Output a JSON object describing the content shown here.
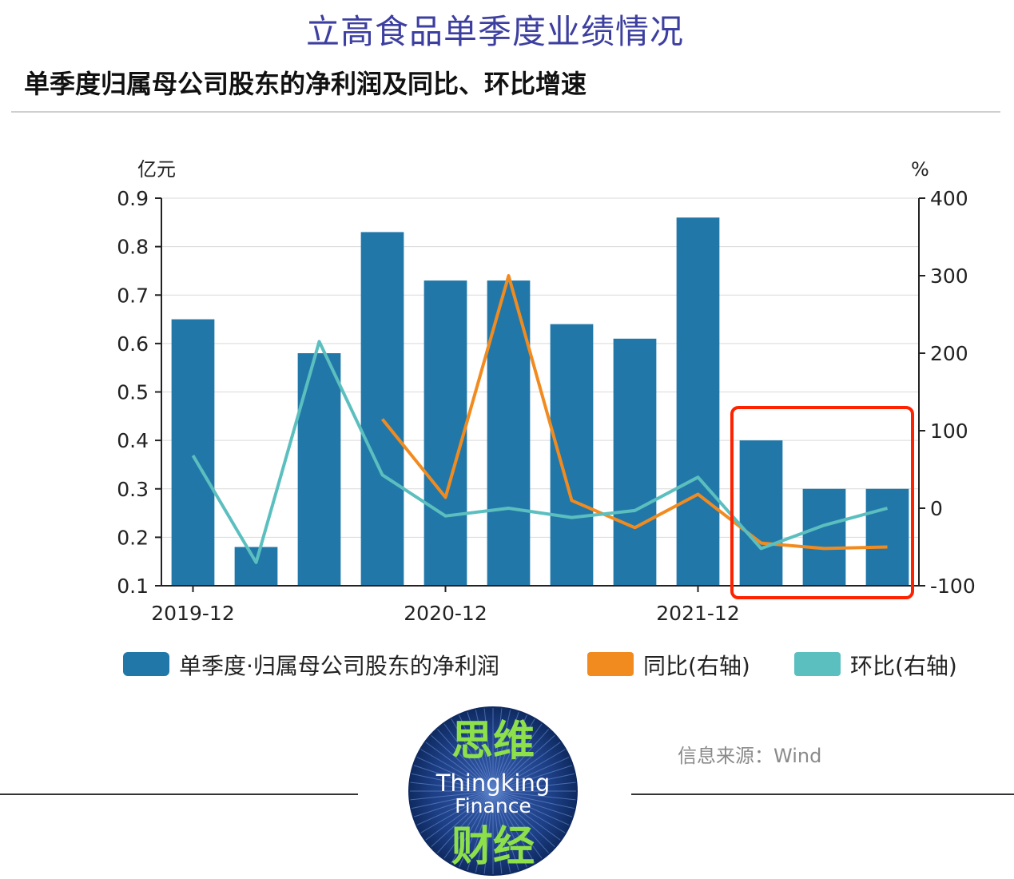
{
  "page": {
    "title": "立高食品单季度业绩情况",
    "subtitle": "单季度归属母公司股东的净利润及同比、环比增速",
    "source": "信息来源：Wind",
    "logo": {
      "top_text": "思维",
      "line1": "Thingking",
      "line2": "Finance",
      "bottom_text": "财经"
    }
  },
  "colors": {
    "bar": "#2178a8",
    "yoy": "#f28b1f",
    "qoq": "#5cbfbf",
    "highlight": "#ff2200",
    "title": "#3d3fa0"
  },
  "chart_data": {
    "type": "bar",
    "x_ticks": [
      "2019-12",
      "2020-12",
      "2021-12"
    ],
    "left_axis": {
      "label": "亿元",
      "ticks": [
        "0.1",
        "0.2",
        "0.3",
        "0.4",
        "0.5",
        "0.6",
        "0.7",
        "0.8",
        "0.9"
      ],
      "ylim": [
        0.1,
        0.9
      ]
    },
    "right_axis": {
      "label": "%",
      "ticks": [
        "-100",
        "0",
        "100",
        "200",
        "300",
        "400"
      ],
      "ylim": [
        -100,
        400
      ]
    },
    "series": [
      {
        "name": "单季度·归属母公司股东的净利润",
        "type": "bar",
        "values": [
          0.65,
          0.18,
          0.58,
          0.83,
          0.73,
          0.73,
          0.64,
          0.61,
          0.86,
          0.4,
          0.3,
          0.3
        ]
      },
      {
        "name": "同比(右轴)",
        "type": "line",
        "values": [
          null,
          null,
          null,
          115,
          14,
          300,
          10,
          -25,
          18,
          -45,
          -52,
          -50
        ]
      },
      {
        "name": "环比(右轴)",
        "type": "line",
        "values": [
          68,
          -70,
          215,
          43,
          -10,
          0,
          -12,
          -3,
          40,
          -52,
          -22,
          0
        ]
      }
    ],
    "highlight_range": [
      9,
      11
    ]
  }
}
